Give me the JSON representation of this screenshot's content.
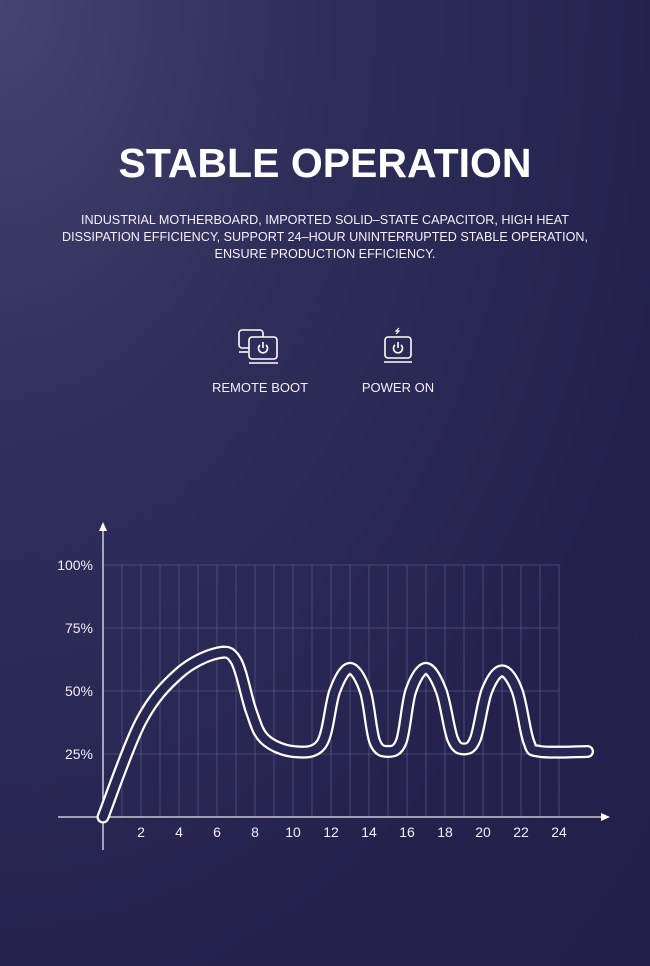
{
  "header": {
    "title": "STABLE OPERATION",
    "description_lines": [
      "INDUSTRIAL MOTHERBOARD, IMPORTED SOLID–STATE CAPACITOR, HIGH HEAT",
      "DISSIPATION EFFICIENCY, SUPPORT 24–HOUR UNINTERRUPTED STABLE OPERATION,",
      "ENSURE PRODUCTION EFFICIENCY."
    ]
  },
  "features": [
    {
      "label": "REMOTE BOOT",
      "icon": "remote-boot-monitors-power-icon"
    },
    {
      "label": "POWER ON",
      "icon": "monitor-power-lightning-icon"
    }
  ],
  "colors": {
    "background": "#24224d",
    "line": "#ffffff",
    "grid": "#5a5a86"
  },
  "chart_data": {
    "type": "line",
    "style": "outlined tube line",
    "x_ticks": [
      "2",
      "4",
      "6",
      "8",
      "10",
      "12",
      "14",
      "16",
      "18",
      "20",
      "22",
      "24"
    ],
    "y_ticks": [
      "25%",
      "50%",
      "75%",
      "100%"
    ],
    "xlim": [
      0,
      24
    ],
    "ylim": [
      0,
      100
    ],
    "grid": true,
    "series": [
      {
        "x": [
          0,
          2,
          4,
          6,
          7,
          7.8,
          8.5,
          10,
          11.5,
          12.2,
          13,
          13.8,
          14.3,
          15,
          15.7,
          16.2,
          17,
          17.8,
          18.4,
          19,
          19.6,
          20.2,
          21,
          21.8,
          22.4,
          23,
          25.5
        ],
        "y": [
          0,
          38,
          57,
          65,
          62,
          42,
          31,
          26,
          29,
          50,
          59,
          50,
          30,
          26,
          30,
          50,
          59,
          50,
          31,
          27,
          31,
          50,
          58,
          50,
          30,
          26,
          26
        ]
      }
    ]
  }
}
